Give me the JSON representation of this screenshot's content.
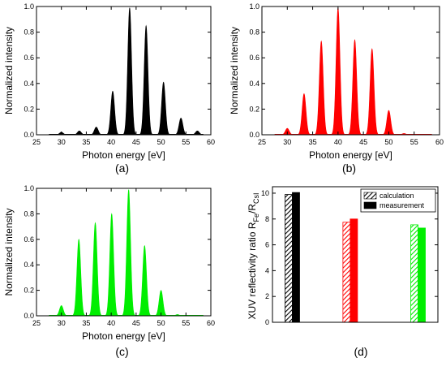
{
  "chart_data": [
    {
      "type": "area",
      "panel_label": "(a)",
      "xlabel": "Photon energy [eV]",
      "ylabel": "Normalized intensity",
      "xlim": [
        25,
        60
      ],
      "ylim": [
        0,
        1.0
      ],
      "xticks": [
        25,
        30,
        35,
        40,
        45,
        50,
        55,
        60
      ],
      "yticks": [
        0.0,
        0.2,
        0.4,
        0.6,
        0.8,
        1.0
      ],
      "color": "#000000",
      "harmonics": [
        {
          "x": 30.0,
          "y": 0.02
        },
        {
          "x": 33.6,
          "y": 0.03
        },
        {
          "x": 37.0,
          "y": 0.06
        },
        {
          "x": 40.3,
          "y": 0.34
        },
        {
          "x": 43.7,
          "y": 0.99
        },
        {
          "x": 47.0,
          "y": 0.85
        },
        {
          "x": 50.5,
          "y": 0.41
        },
        {
          "x": 54.0,
          "y": 0.13
        },
        {
          "x": 57.3,
          "y": 0.03
        }
      ]
    },
    {
      "type": "area",
      "panel_label": "(b)",
      "xlabel": "Photon energy [eV]",
      "ylabel": "Normalized intensity",
      "xlim": [
        25,
        60
      ],
      "ylim": [
        0,
        1.0
      ],
      "xticks": [
        25,
        30,
        35,
        40,
        45,
        50,
        55,
        60
      ],
      "yticks": [
        0.0,
        0.2,
        0.4,
        0.6,
        0.8,
        1.0
      ],
      "color": "#ff0000",
      "harmonics": [
        {
          "x": 30.0,
          "y": 0.05
        },
        {
          "x": 33.3,
          "y": 0.32
        },
        {
          "x": 36.7,
          "y": 0.73
        },
        {
          "x": 40.0,
          "y": 0.99
        },
        {
          "x": 43.3,
          "y": 0.74
        },
        {
          "x": 46.7,
          "y": 0.67
        },
        {
          "x": 50.0,
          "y": 0.19
        },
        {
          "x": 53.0,
          "y": 0.01
        }
      ]
    },
    {
      "type": "area",
      "panel_label": "(c)",
      "xlabel": "Photon energy [eV]",
      "ylabel": "Normalized intensity",
      "xlim": [
        25,
        60
      ],
      "ylim": [
        0,
        1.0
      ],
      "xticks": [
        25,
        30,
        35,
        40,
        45,
        50,
        55,
        60
      ],
      "yticks": [
        0.0,
        0.2,
        0.4,
        0.6,
        0.8,
        1.0
      ],
      "color": "#00ee00",
      "harmonics": [
        {
          "x": 30.0,
          "y": 0.08
        },
        {
          "x": 33.5,
          "y": 0.6
        },
        {
          "x": 36.8,
          "y": 0.73
        },
        {
          "x": 40.1,
          "y": 0.8
        },
        {
          "x": 43.5,
          "y": 0.99
        },
        {
          "x": 46.7,
          "y": 0.55
        },
        {
          "x": 50.0,
          "y": 0.2
        },
        {
          "x": 53.3,
          "y": 0.01
        }
      ]
    },
    {
      "type": "bar",
      "panel_label": "(d)",
      "ylabel_main": "XUV reflectivity ratio R",
      "ylabel_sub1": "Fe",
      "ylabel_mid": "/R",
      "ylabel_sub2": "CsI",
      "ylim": [
        0,
        10.5
      ],
      "yticks": [
        0,
        2,
        4,
        6,
        8,
        10
      ],
      "legend_position": "top-right",
      "series": [
        {
          "name": "calculation",
          "pattern": "hatched",
          "values": [
            9.9,
            7.75,
            7.55
          ]
        },
        {
          "name": "measurement",
          "pattern": "solid",
          "values": [
            10.05,
            8.0,
            7.3
          ]
        }
      ],
      "group_colors": [
        "#000000",
        "#ff0000",
        "#00ee00"
      ]
    }
  ]
}
